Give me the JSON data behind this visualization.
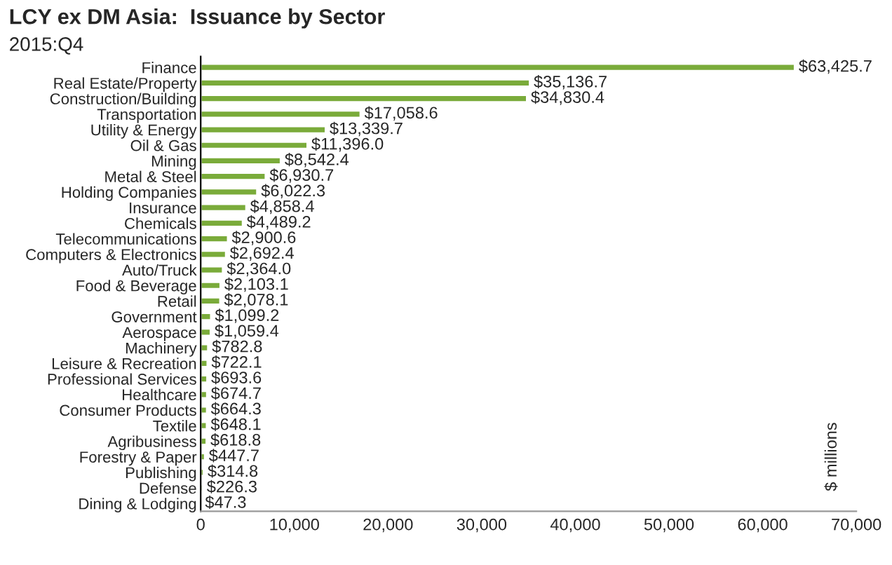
{
  "chart_data": {
    "type": "bar",
    "orientation": "horizontal",
    "title": "LCY ex DM Asia:  Issuance by Sector",
    "subtitle": "2015:Q4",
    "ylabel": "$ millions",
    "categories": [
      "Finance",
      "Real Estate/Property",
      "Construction/Building",
      "Transportation",
      "Utility & Energy",
      "Oil & Gas",
      "Mining",
      "Metal & Steel",
      "Holding Companies",
      "Insurance",
      "Chemicals",
      "Telecommunications",
      "Computers & Electronics",
      "Auto/Truck",
      "Food & Beverage",
      "Retail",
      "Government",
      "Aerospace",
      "Machinery",
      "Leisure & Recreation",
      "Professional Services",
      "Healthcare",
      "Consumer Products",
      "Textile",
      "Agribusiness",
      "Forestry & Paper",
      "Publishing",
      "Defense",
      "Dining & Lodging"
    ],
    "values": [
      63425.7,
      35136.7,
      34830.4,
      17058.6,
      13339.7,
      11396.0,
      8542.4,
      6930.7,
      6022.3,
      4858.4,
      4489.2,
      2900.6,
      2692.4,
      2364.0,
      2103.1,
      2078.1,
      1099.2,
      1059.4,
      782.8,
      722.1,
      693.6,
      674.7,
      664.3,
      648.1,
      618.8,
      447.7,
      314.8,
      226.3,
      47.3
    ],
    "value_labels": [
      "$63,425.7",
      "$35,136.7",
      "$34,830.4",
      "$17,058.6",
      "$13,339.7",
      "$11,396.0",
      "$8,542.4",
      "$6,930.7",
      "$6,022.3",
      "$4,858.4",
      "$4,489.2",
      "$2,900.6",
      "$2,692.4",
      "$2,364.0",
      "$2,103.1",
      "$2,078.1",
      "$1,099.2",
      "$1,059.4",
      "$782.8",
      "$722.1",
      "$693.6",
      "$674.7",
      "$664.3",
      "$648.1",
      "$618.8",
      "$447.7",
      "$314.8",
      "$226.3",
      "$47.3"
    ],
    "color": "#7aab3a",
    "xlim": [
      0,
      70000
    ],
    "xticks": [
      {
        "value": 0,
        "label": "0"
      },
      {
        "value": 10000,
        "label": "10,000"
      },
      {
        "value": 20000,
        "label": "20,000"
      },
      {
        "value": 30000,
        "label": "30,000"
      },
      {
        "value": 40000,
        "label": "40,000"
      },
      {
        "value": 50000,
        "label": "50,000"
      },
      {
        "value": 60000,
        "label": "60,000"
      },
      {
        "value": 70000,
        "label": "70,000"
      }
    ],
    "grid": false,
    "legend": false
  }
}
